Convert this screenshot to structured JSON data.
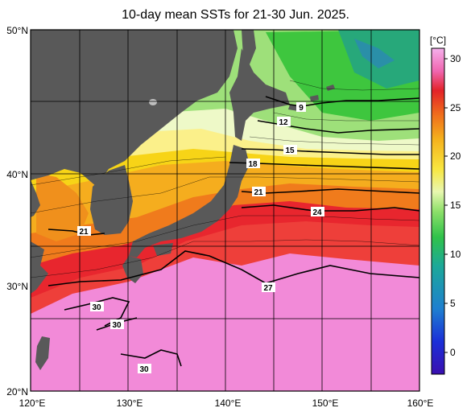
{
  "title": "10-day mean SSTs for 21-30 Jun. 2025.",
  "axes": {
    "lat_ticks": [
      "50°N",
      "40°N",
      "30°N",
      "20°N"
    ],
    "lon_ticks": [
      "120°E",
      "130°E",
      "140°E",
      "150°E",
      "160°E"
    ]
  },
  "colorbar": {
    "unit": "[°C]",
    "ticks": [
      "30",
      "25",
      "20",
      "15",
      "10",
      "5",
      "0"
    ]
  },
  "contour_labels": [
    "9",
    "12",
    "15",
    "18",
    "21",
    "24",
    "21",
    "27",
    "30",
    "30",
    "30"
  ],
  "colors": {
    "land": "#595959",
    "warmest": "#f28ad8",
    "red": "#e8262e",
    "orange": "#f07b1c",
    "yellow": "#f7d417",
    "pale": "#fdf9c8",
    "green": "#3ec63e",
    "teal": "#2a8fa8"
  }
}
